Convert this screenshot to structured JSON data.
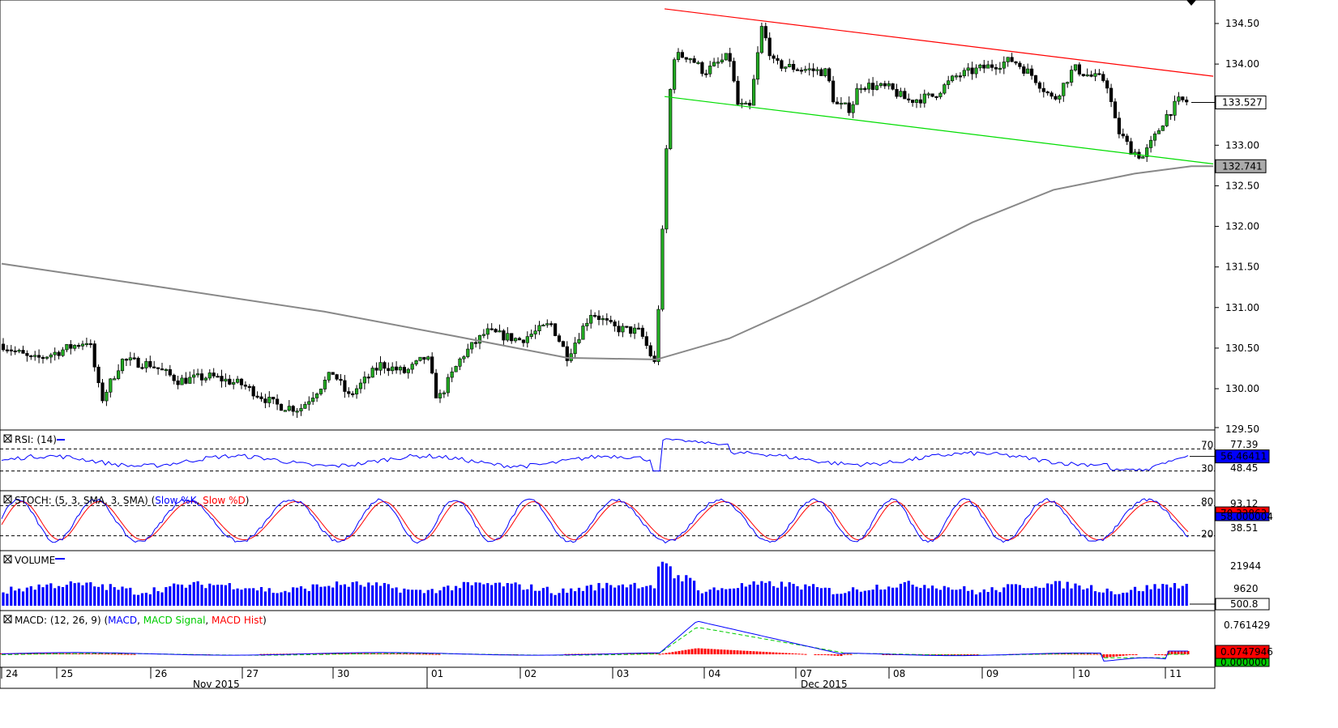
{
  "chart_data": {
    "type": "candlestick",
    "instrument_panels": [
      {
        "id": "price",
        "label": ""
      },
      {
        "id": "rsi",
        "label": "RSI: (14)"
      },
      {
        "id": "stoch",
        "label_prefix": "STOCH: (5, 3, SMA, 3, SMA) (",
        "label_k": "Slow %K",
        "label_sep": ", ",
        "label_d": "Slow %D",
        "label_suffix": ")"
      },
      {
        "id": "volume",
        "label": "VOLUME"
      },
      {
        "id": "macd",
        "label_prefix": "MACD: (12, 26, 9) (",
        "label_macd": "MACD",
        "label_sep1": ", ",
        "label_signal": "MACD Signal",
        "label_sep2": ", ",
        "label_hist": "MACD Hist",
        "label_suffix": ")"
      }
    ],
    "price_axis": {
      "ylim": [
        129.5,
        134.65
      ],
      "ticks": [
        "134.50",
        "134.00",
        "133.50",
        "133.00",
        "132.50",
        "132.00",
        "131.50",
        "131.00",
        "130.50",
        "130.00",
        "129.50"
      ],
      "tick_values": [
        134.5,
        134.0,
        133.5,
        133.0,
        132.5,
        132.0,
        131.5,
        131.0,
        130.5,
        130.0,
        129.5
      ],
      "current_price": "133.527",
      "moving_average_last": "132.741"
    },
    "x_axis": {
      "day_labels": [
        "24",
        "25",
        "26",
        "27",
        "30",
        "01",
        "02",
        "03",
        "04",
        "07",
        "08",
        "09",
        "10",
        "11"
      ],
      "month_labels": [
        "Nov 2015",
        "Dec 2015"
      ]
    },
    "price_series": {
      "daily_ohlc": [
        {
          "day": "24",
          "open": 130.55,
          "high": 130.65,
          "low": 130.25,
          "close": 130.45
        },
        {
          "day": "25",
          "open": 130.45,
          "high": 130.75,
          "low": 129.8,
          "close": 130.2
        },
        {
          "day": "26",
          "open": 130.2,
          "high": 130.45,
          "low": 129.9,
          "close": 130.1
        },
        {
          "day": "27",
          "open": 130.1,
          "high": 130.2,
          "low": 129.7,
          "close": 129.95
        },
        {
          "day": "30",
          "open": 129.95,
          "high": 130.3,
          "low": 129.8,
          "close": 130.25
        },
        {
          "day": "01",
          "open": 130.25,
          "high": 130.75,
          "low": 129.8,
          "close": 130.7
        },
        {
          "day": "02",
          "open": 130.7,
          "high": 130.95,
          "low": 130.35,
          "close": 130.7
        },
        {
          "day": "03",
          "open": 130.7,
          "high": 131.0,
          "low": 130.2,
          "close": 130.4
        },
        {
          "day": "03b",
          "open": 130.4,
          "high": 134.5,
          "low": 129.95,
          "close": 134.2
        },
        {
          "day": "04",
          "open": 134.2,
          "high": 134.6,
          "low": 133.3,
          "close": 133.9
        },
        {
          "day": "07",
          "open": 133.9,
          "high": 134.0,
          "low": 133.3,
          "close": 133.7
        },
        {
          "day": "08",
          "open": 133.7,
          "high": 133.9,
          "low": 133.5,
          "close": 133.8
        },
        {
          "day": "09",
          "open": 133.8,
          "high": 134.2,
          "low": 133.6,
          "close": 134.0
        },
        {
          "day": "10",
          "open": 134.0,
          "high": 134.1,
          "low": 132.8,
          "close": 132.95
        },
        {
          "day": "11",
          "open": 132.95,
          "high": 133.6,
          "low": 132.85,
          "close": 133.53
        }
      ],
      "moving_average": [
        {
          "x": 0.0,
          "y": 131.54
        },
        {
          "x": 0.25,
          "y": 131.05
        },
        {
          "x": 0.5,
          "y": 130.55
        },
        {
          "x": 0.54,
          "y": 130.36
        },
        {
          "x": 0.6,
          "y": 131.0
        },
        {
          "x": 0.7,
          "y": 131.8
        },
        {
          "x": 0.8,
          "y": 132.3
        },
        {
          "x": 0.9,
          "y": 132.6
        },
        {
          "x": 1.0,
          "y": 132.741
        }
      ]
    },
    "trendlines": [
      {
        "name": "channel-top",
        "color": "#ff0000",
        "start": {
          "day": "03b",
          "price": 134.68
        },
        "end": {
          "day": "11+",
          "price": 133.85
        }
      },
      {
        "name": "channel-bottom",
        "color": "#00dd00",
        "start": {
          "day": "03b",
          "price": 133.6
        },
        "end": {
          "day": "11+",
          "price": 132.77
        }
      }
    ],
    "rsi": {
      "ticks": [
        "70",
        "30"
      ],
      "right_ticks": [
        "77.39",
        "48.45"
      ],
      "current": "56.46411",
      "levels": [
        70,
        30
      ]
    },
    "stoch": {
      "ticks": [
        "80",
        "20"
      ],
      "right_ticks": [
        "93.12",
        "38.51"
      ],
      "current_k": "70.32863",
      "current_d": "58.000004",
      "levels": [
        80,
        20
      ]
    },
    "volume": {
      "ticks": [
        "21944",
        "9620"
      ],
      "current": "500.8"
    },
    "macd": {
      "ticks": [
        "0.761429"
      ],
      "current_macd": "0.0747946",
      "current_signal": "0.000000"
    },
    "colors": {
      "bull_candle": "#22aa22",
      "bear_candle": "#000000",
      "rsi_line": "#0000ff",
      "stoch_k": "#0000ff",
      "stoch_d": "#ff0000",
      "volume_bar": "#0000ff",
      "macd_line": "#0000ff",
      "macd_signal": "#00cc00",
      "macd_hist": "#ff0000",
      "moving_average": "#888888"
    }
  }
}
